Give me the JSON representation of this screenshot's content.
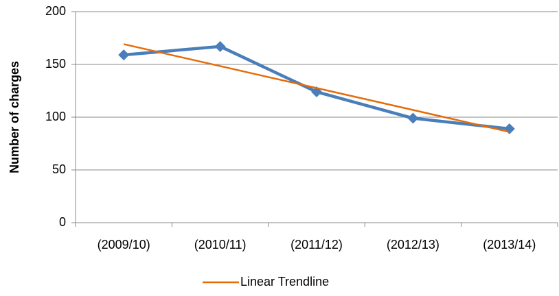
{
  "chart_data": {
    "type": "line",
    "y_label": "Number of charges",
    "categories": [
      "(2009/10)",
      "(2010/11)",
      "(2011/12)",
      "(2012/13)",
      "(2013/14)"
    ],
    "series": [
      {
        "color": "#4a7ebb",
        "values": [
          159,
          167,
          124,
          99,
          89
        ]
      },
      {
        "name": "Linear Trendline",
        "color": "#e46c0a",
        "values": [
          169.2,
          148.4,
          127.6,
          106.8,
          86
        ]
      }
    ],
    "ylim": [
      0,
      200
    ],
    "yticks": [
      0,
      50,
      100,
      150,
      200
    ],
    "grid": true,
    "legend": "bottom"
  }
}
